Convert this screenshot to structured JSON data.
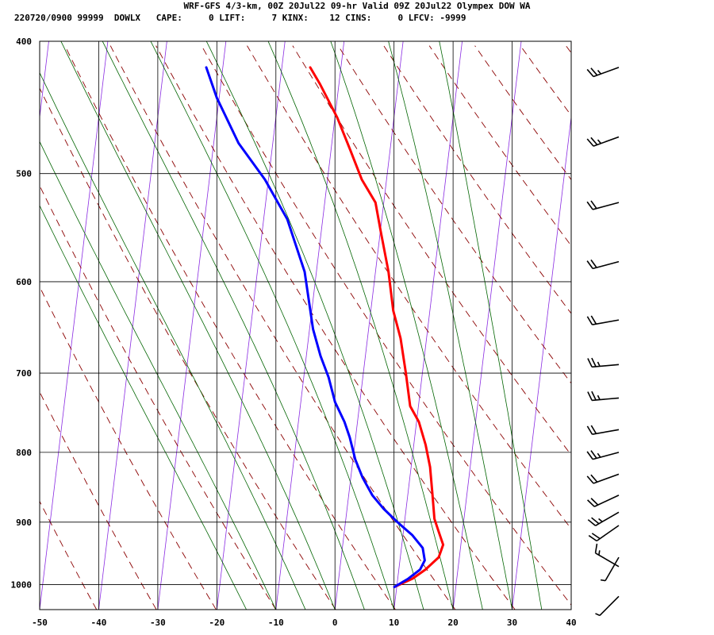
{
  "header": {
    "line1": "WRF-GFS 4/3-km, 00Z 20Jul22 09-hr Valid 09Z 20Jul22 Olympex DOW WA",
    "line2": "220720/0900 99999  DOWLX   CAPE:     0 LIFT:     7 KINX:    12 CINS:     0 LFCV: -9999"
  },
  "chart_data": {
    "type": "line",
    "subtype": "skew-T log-P sounding",
    "pressure_ticks": [
      400,
      500,
      600,
      700,
      800,
      900,
      1000
    ],
    "temperature_ticks": [
      -50,
      -40,
      -30,
      -20,
      -10,
      0,
      10,
      20,
      30,
      40
    ],
    "xlim": [
      -50,
      40
    ],
    "plim": [
      1043,
      400
    ],
    "grid": true,
    "colors": {
      "temperature": "#ff0000",
      "dewpoint": "#0000ff",
      "dry_adiabats": "#8b0000",
      "moist_adiabats": "#006400",
      "isotherms": "#8a2be2",
      "grid": "#000000"
    },
    "series": [
      {
        "points": [
          [
            1004,
            9.6
          ],
          [
            990,
            12.5
          ],
          [
            975,
            14.5
          ],
          [
            955,
            16.5
          ],
          [
            935,
            17.0
          ],
          [
            915,
            16.0
          ],
          [
            895,
            15.0
          ],
          [
            860,
            14.2
          ],
          [
            820,
            13.2
          ],
          [
            790,
            12.0
          ],
          [
            760,
            10.4
          ],
          [
            740,
            8.6
          ],
          [
            700,
            7.2
          ],
          [
            660,
            5.6
          ],
          [
            630,
            3.8
          ],
          [
            590,
            2.2
          ],
          [
            550,
            0.0
          ],
          [
            525,
            -1.4
          ],
          [
            505,
            -4.2
          ],
          [
            480,
            -6.8
          ],
          [
            455,
            -9.6
          ],
          [
            430,
            -13.2
          ],
          [
            418,
            -15.2
          ]
        ]
      },
      {
        "points": [
          [
            1004,
            9.6
          ],
          [
            990,
            11.8
          ],
          [
            975,
            13.6
          ],
          [
            960,
            14.2
          ],
          [
            940,
            13.6
          ],
          [
            920,
            11.6
          ],
          [
            900,
            8.8
          ],
          [
            880,
            6.2
          ],
          [
            860,
            4.0
          ],
          [
            835,
            2.0
          ],
          [
            810,
            0.4
          ],
          [
            780,
            -1.0
          ],
          [
            760,
            -2.2
          ],
          [
            735,
            -4.2
          ],
          [
            705,
            -5.8
          ],
          [
            680,
            -7.6
          ],
          [
            650,
            -9.4
          ],
          [
            590,
            -12.0
          ],
          [
            540,
            -16.0
          ],
          [
            505,
            -20.6
          ],
          [
            475,
            -25.8
          ],
          [
            440,
            -30.4
          ],
          [
            418,
            -32.8
          ]
        ]
      }
    ],
    "dry_adiabat_thetas": [
      230,
      240,
      250,
      260,
      270,
      280,
      290,
      300,
      310,
      320,
      330,
      340,
      350,
      360,
      370,
      380,
      390,
      400
    ],
    "moist_adiabat_start_temps": [
      -15,
      -10,
      -5,
      0,
      5,
      10,
      15,
      20,
      25,
      30,
      35
    ],
    "isotherm_extra_temps": [
      -50,
      -40,
      -30,
      -20,
      -10,
      0,
      10,
      20,
      30,
      40,
      50
    ],
    "wind_barbs": [
      {
        "p": 418,
        "dir": 250,
        "speed_kt": 25
      },
      {
        "p": 470,
        "dir": 250,
        "speed_kt": 25
      },
      {
        "p": 525,
        "dir": 255,
        "speed_kt": 20
      },
      {
        "p": 580,
        "dir": 255,
        "speed_kt": 20
      },
      {
        "p": 640,
        "dir": 260,
        "speed_kt": 20
      },
      {
        "p": 690,
        "dir": 265,
        "speed_kt": 25
      },
      {
        "p": 730,
        "dir": 265,
        "speed_kt": 25
      },
      {
        "p": 770,
        "dir": 260,
        "speed_kt": 20
      },
      {
        "p": 800,
        "dir": 255,
        "speed_kt": 25
      },
      {
        "p": 830,
        "dir": 250,
        "speed_kt": 20
      },
      {
        "p": 860,
        "dir": 245,
        "speed_kt": 20
      },
      {
        "p": 885,
        "dir": 240,
        "speed_kt": 25
      },
      {
        "p": 905,
        "dir": 235,
        "speed_kt": 20
      },
      {
        "p": 955,
        "dir": 210,
        "speed_kt": 5
      },
      {
        "p": 970,
        "dir": 300,
        "speed_kt": 15
      },
      {
        "p": 1020,
        "dir": 225,
        "speed_kt": 5
      }
    ]
  }
}
